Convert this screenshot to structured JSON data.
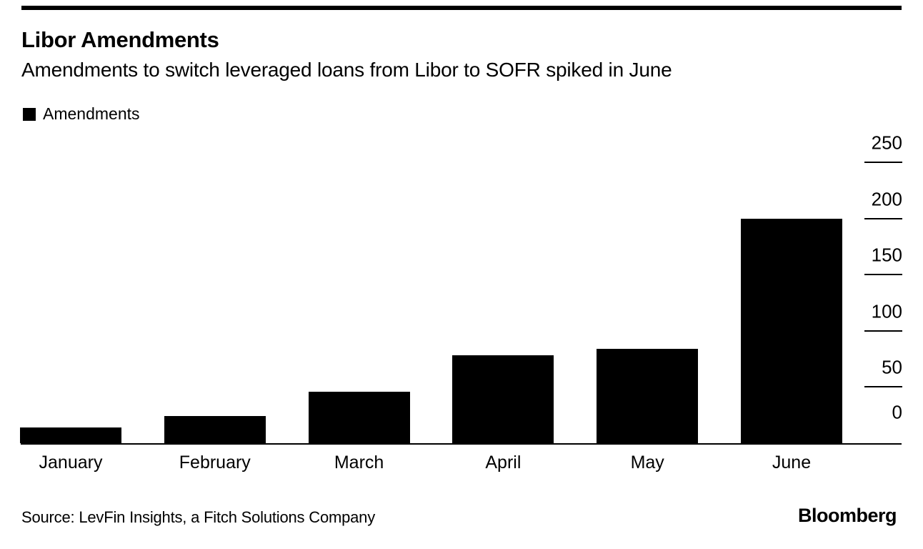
{
  "header": {
    "title": "Libor Amendments",
    "subtitle": "Amendments to switch leveraged loans from Libor to SOFR spiked in June"
  },
  "legend": {
    "label": "Amendments",
    "swatch_color": "#000000"
  },
  "footer": {
    "source": "Source: LevFin Insights, a Fitch Solutions Company",
    "brand": "Bloomberg"
  },
  "colors": {
    "background": "#ffffff",
    "bar": "#000000",
    "text": "#000000",
    "axis": "#000000"
  },
  "chart_data": {
    "type": "bar",
    "title": "Libor Amendments",
    "subtitle": "Amendments to switch leveraged loans from Libor to SOFR spiked in June",
    "series_name": "Amendments",
    "categories": [
      "January",
      "February",
      "March",
      "April",
      "May",
      "June"
    ],
    "values": [
      14,
      24,
      46,
      78,
      84,
      200
    ],
    "xlabel": "",
    "ylabel": "",
    "ylim": [
      0,
      250
    ],
    "yticks": [
      0,
      50,
      100,
      150,
      200,
      250
    ],
    "y_axis_side": "right",
    "grid": false,
    "legend_position": "top-left",
    "source": "Source: LevFin Insights, a Fitch Solutions Company"
  }
}
